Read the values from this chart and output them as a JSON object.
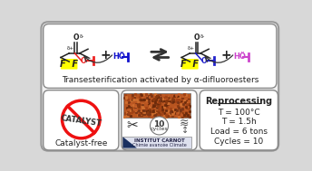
{
  "bg_color": "#d8d8d8",
  "top_box_fc": "#ffffff",
  "bot_box_fc": "#ffffff",
  "title_text": "Transesterification activated by α-difluoroesters",
  "reprocessing_title": "Reprocessing",
  "reprocessing_lines": [
    "T = 100°C",
    "T = 1.5h",
    "Load = 6 tons",
    "Cycles = 10"
  ],
  "catalyst_free_text": "Catalyst-free",
  "catalyst_text": "CATALYST",
  "no_symbol_color": "#ee1111",
  "ff_bg_color": "#ffff00",
  "red_o": "#ee2222",
  "blue_o": "#2222cc",
  "blue_oh": "#1111cc",
  "pink_oh": "#cc44cc",
  "arrow_color": "#333333",
  "font_color": "#222222",
  "photo_color": "#b85520",
  "box_ec": "#888888",
  "outer_ec": "#999999"
}
